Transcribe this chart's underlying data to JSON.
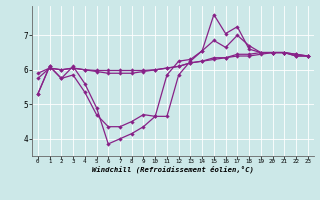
{
  "x": [
    0,
    1,
    2,
    3,
    4,
    5,
    6,
    7,
    8,
    9,
    10,
    11,
    12,
    13,
    14,
    15,
    16,
    17,
    18,
    19,
    20,
    21,
    22,
    23
  ],
  "line1": [
    5.3,
    6.1,
    5.75,
    6.1,
    5.6,
    4.9,
    3.85,
    4.0,
    4.15,
    4.35,
    4.65,
    5.85,
    6.25,
    6.3,
    6.55,
    7.6,
    7.05,
    7.25,
    6.6,
    6.5,
    6.5,
    6.5,
    6.4,
    6.4
  ],
  "line2": [
    5.3,
    6.1,
    5.75,
    5.85,
    5.35,
    4.7,
    4.35,
    4.35,
    4.5,
    4.7,
    4.65,
    4.65,
    5.85,
    6.25,
    6.55,
    6.85,
    6.65,
    7.0,
    6.7,
    6.5,
    6.5,
    6.5,
    6.4,
    6.4
  ],
  "line3": [
    5.75,
    6.05,
    6.0,
    6.05,
    6.0,
    5.95,
    5.9,
    5.9,
    5.9,
    5.95,
    6.0,
    6.05,
    6.1,
    6.2,
    6.25,
    6.35,
    6.35,
    6.45,
    6.45,
    6.5,
    6.5,
    6.5,
    6.45,
    6.4
  ],
  "line4": [
    5.9,
    6.05,
    6.0,
    6.05,
    6.0,
    5.98,
    5.98,
    5.98,
    5.98,
    5.98,
    6.0,
    6.05,
    6.1,
    6.2,
    6.25,
    6.3,
    6.35,
    6.4,
    6.4,
    6.45,
    6.5,
    6.5,
    6.45,
    6.4
  ],
  "color": "#882288",
  "bg_color": "#cce8e8",
  "xlabel": "Windchill (Refroidissement éolien,°C)",
  "ylim": [
    3.5,
    7.85
  ],
  "xlim": [
    -0.5,
    23.5
  ],
  "yticks": [
    4,
    5,
    6,
    7
  ],
  "xticks": [
    0,
    1,
    2,
    3,
    4,
    5,
    6,
    7,
    8,
    9,
    10,
    11,
    12,
    13,
    14,
    15,
    16,
    17,
    18,
    19,
    20,
    21,
    22,
    23
  ]
}
